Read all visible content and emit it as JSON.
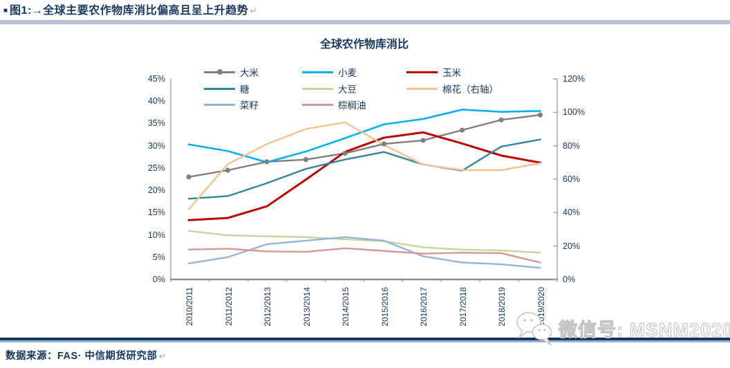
{
  "doc": {
    "title_bullet": "■",
    "title": "图1:→全球主要农作物库消比偏高且呈上升趋势",
    "return_mark": "↵",
    "source": "数据来源：FAS· 中信期货研究部"
  },
  "watermark": {
    "label": "微信号: MSNM2020",
    "icon": "wechat-logo"
  },
  "chart_data": {
    "type": "line",
    "title": "全球农作物库消比",
    "legend_position": "top",
    "grid": false,
    "axis_color": "#A6A6A6",
    "label_color": "#17375E",
    "categories": [
      "2010/2011",
      "2011/2012",
      "2012/2013",
      "2013/2014",
      "2014/2015",
      "2015/2016",
      "2016/2017",
      "2017/2018",
      "2018/2019",
      "2019/2020"
    ],
    "left_axis": {
      "min": 0,
      "max": 45,
      "step": 5,
      "ticks": [
        "0%",
        "5%",
        "10%",
        "15%",
        "20%",
        "25%",
        "30%",
        "35%",
        "40%",
        "45%"
      ]
    },
    "right_axis": {
      "min": 0,
      "max": 120,
      "step": 20,
      "ticks": [
        "0%",
        "20%",
        "40%",
        "60%",
        "80%",
        "100%",
        "120%"
      ]
    },
    "series": [
      {
        "key": "rice",
        "name": "大米",
        "color": "#7F7F7F",
        "axis": "left",
        "marker": true,
        "width": 2.4,
        "values": [
          23.0,
          24.5,
          26.4,
          26.9,
          28.3,
          30.4,
          31.2,
          33.5,
          35.8,
          36.9
        ]
      },
      {
        "key": "wheat",
        "name": "小麦",
        "color": "#00B0F0",
        "axis": "left",
        "marker": false,
        "width": 2.6,
        "values": [
          30.3,
          28.8,
          26.3,
          28.7,
          31.7,
          34.8,
          36.0,
          38.1,
          37.6,
          37.8
        ]
      },
      {
        "key": "corn",
        "name": "玉米",
        "color": "#C00000",
        "axis": "left",
        "marker": false,
        "width": 3,
        "values": [
          13.3,
          13.8,
          16.4,
          22.4,
          28.6,
          31.8,
          33.0,
          30.5,
          27.8,
          26.2
        ]
      },
      {
        "key": "sugar",
        "name": "糖",
        "color": "#31859C",
        "axis": "left",
        "marker": false,
        "width": 2.4,
        "values": [
          18.1,
          18.7,
          21.6,
          24.8,
          26.9,
          28.6,
          25.8,
          24.4,
          29.8,
          31.4
        ]
      },
      {
        "key": "soybean",
        "name": "大豆",
        "color": "#C3D69B",
        "axis": "left",
        "marker": false,
        "width": 2.4,
        "values": [
          10.9,
          9.9,
          9.7,
          9.5,
          9.0,
          8.6,
          7.2,
          6.7,
          6.5,
          6.0
        ]
      },
      {
        "key": "cotton",
        "name": "棉花（右轴）",
        "color": "#FAC090",
        "axis": "right",
        "marker": false,
        "width": 2.4,
        "values": [
          42,
          69,
          81,
          90,
          94,
          80.5,
          68.7,
          65.4,
          65.4,
          69.5
        ]
      },
      {
        "key": "rapeseed",
        "name": "菜籽",
        "color": "#95B3D7",
        "axis": "left",
        "marker": false,
        "width": 2.4,
        "values": [
          3.6,
          5.0,
          7.9,
          8.7,
          9.5,
          8.7,
          5.2,
          3.8,
          3.4,
          2.6
        ]
      },
      {
        "key": "palm-oil",
        "name": "棕榈油",
        "color": "#D99694",
        "axis": "left",
        "marker": false,
        "width": 2.4,
        "values": [
          6.7,
          6.9,
          6.3,
          6.2,
          7.0,
          6.4,
          5.8,
          6.0,
          5.9,
          3.8
        ]
      }
    ]
  }
}
